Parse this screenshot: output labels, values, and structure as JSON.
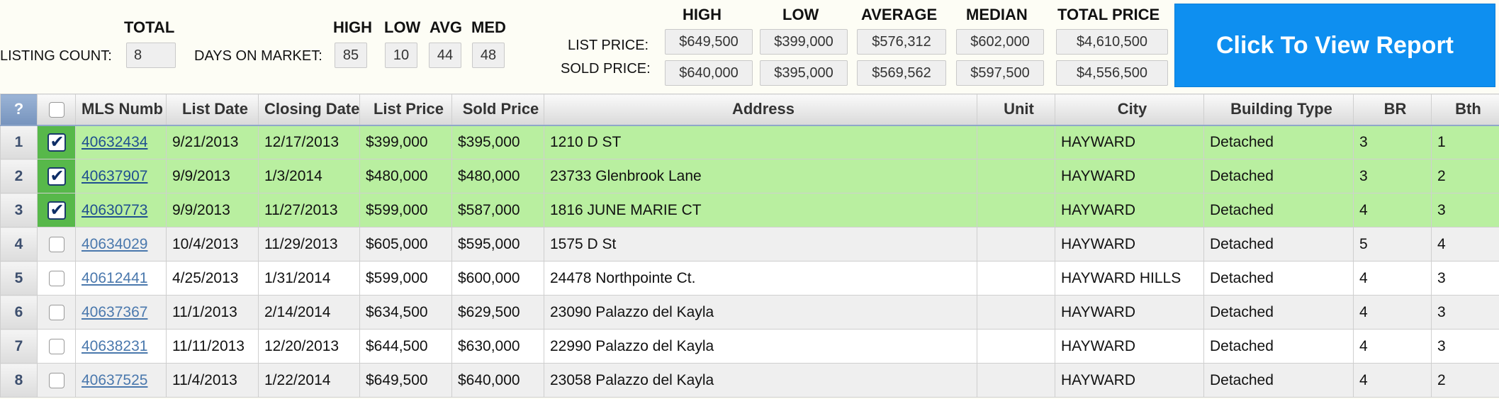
{
  "summary": {
    "total_header": "TOTAL",
    "listing_count_label": "LISTING COUNT:",
    "listing_count_value": "8",
    "days_on_market_label": "DAYS ON MARKET:",
    "dom_headers": [
      "HIGH",
      "LOW",
      "AVG",
      "MED"
    ],
    "dom_values": [
      "85",
      "10",
      "44",
      "48"
    ]
  },
  "prices": {
    "headers": [
      "HIGH",
      "LOW",
      "AVERAGE",
      "MEDIAN",
      "TOTAL PRICE"
    ],
    "list_label": "LIST PRICE:",
    "sold_label": "SOLD PRICE:",
    "list_values": [
      "$649,500",
      "$399,000",
      "$576,312",
      "$602,000",
      "$4,610,500"
    ],
    "sold_values": [
      "$640,000",
      "$395,000",
      "$569,562",
      "$597,500",
      "$4,556,500"
    ]
  },
  "report_button": "Click To View Report",
  "table": {
    "corner": "?",
    "columns": [
      "MLS Numb",
      "List Date",
      "Closing Date",
      "List Price",
      "Sold Price",
      "Address",
      "Unit",
      "City",
      "Building Type",
      "BR",
      "Bth"
    ],
    "rows": [
      {
        "n": "1",
        "checked": true,
        "mls": "40632434",
        "list_date": "9/21/2013",
        "closing_date": "12/17/2013",
        "list_price": "$399,000",
        "sold_price": "$395,000",
        "address": "1210 D ST",
        "unit": "",
        "city": "HAYWARD",
        "building_type": "Detached",
        "br": "3",
        "bth": "1"
      },
      {
        "n": "2",
        "checked": true,
        "mls": "40637907",
        "list_date": "9/9/2013",
        "closing_date": "1/3/2014",
        "list_price": "$480,000",
        "sold_price": "$480,000",
        "address": "23733 Glenbrook Lane",
        "unit": "",
        "city": "HAYWARD",
        "building_type": "Detached",
        "br": "3",
        "bth": "2"
      },
      {
        "n": "3",
        "checked": true,
        "mls": "40630773",
        "list_date": "9/9/2013",
        "closing_date": "11/27/2013",
        "list_price": "$599,000",
        "sold_price": "$587,000",
        "address": "1816 JUNE MARIE CT",
        "unit": "",
        "city": "HAYWARD",
        "building_type": "Detached",
        "br": "4",
        "bth": "3"
      },
      {
        "n": "4",
        "checked": false,
        "mls": "40634029",
        "list_date": "10/4/2013",
        "closing_date": "11/29/2013",
        "list_price": "$605,000",
        "sold_price": "$595,000",
        "address": "1575 D St",
        "unit": "",
        "city": "HAYWARD",
        "building_type": "Detached",
        "br": "5",
        "bth": "4"
      },
      {
        "n": "5",
        "checked": false,
        "mls": "40612441",
        "list_date": "4/25/2013",
        "closing_date": "1/31/2014",
        "list_price": "$599,000",
        "sold_price": "$600,000",
        "address": "24478 Northpointe Ct.",
        "unit": "",
        "city": "HAYWARD HILLS",
        "building_type": "Detached",
        "br": "4",
        "bth": "3"
      },
      {
        "n": "6",
        "checked": false,
        "mls": "40637367",
        "list_date": "11/1/2013",
        "closing_date": "2/14/2014",
        "list_price": "$634,500",
        "sold_price": "$629,500",
        "address": "23090 Palazzo del Kayla",
        "unit": "",
        "city": "HAYWARD",
        "building_type": "Detached",
        "br": "4",
        "bth": "3"
      },
      {
        "n": "7",
        "checked": false,
        "mls": "40638231",
        "list_date": "11/11/2013",
        "closing_date": "12/20/2013",
        "list_price": "$644,500",
        "sold_price": "$630,000",
        "address": "22990 Palazzo del Kayla",
        "unit": "",
        "city": "HAYWARD",
        "building_type": "Detached",
        "br": "4",
        "bth": "3"
      },
      {
        "n": "8",
        "checked": false,
        "mls": "40637525",
        "list_date": "11/4/2013",
        "closing_date": "1/22/2014",
        "list_price": "$649,500",
        "sold_price": "$640,000",
        "address": "23058 Palazzo del Kayla",
        "unit": "",
        "city": "HAYWARD",
        "building_type": "Detached",
        "br": "4",
        "bth": "2"
      }
    ]
  }
}
